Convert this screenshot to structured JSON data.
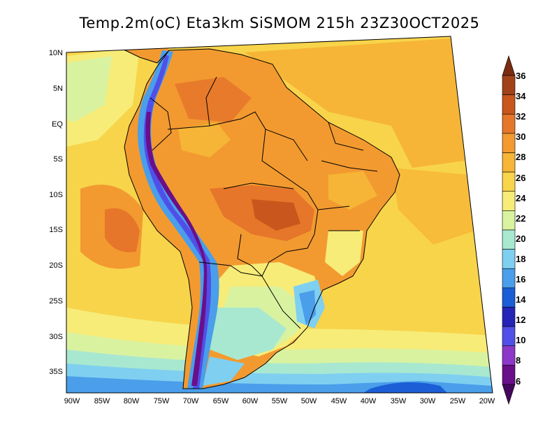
{
  "title": "Temp.2m(oC) Eta3km SiSMOM 215h 23Z30OCT2025",
  "lat_labels": [
    "10N",
    "5N",
    "EQ",
    "5S",
    "10S",
    "15S",
    "20S",
    "25S",
    "30S",
    "35S"
  ],
  "lon_labels": [
    "90W",
    "85W",
    "80W",
    "75W",
    "70W",
    "65W",
    "60W",
    "55W",
    "50W",
    "45W",
    "40W",
    "35W",
    "30W",
    "25W",
    "20W"
  ],
  "colorbar": {
    "labels": [
      "36",
      "34",
      "32",
      "30",
      "28",
      "26",
      "24",
      "22",
      "20",
      "18",
      "16",
      "14",
      "12",
      "10",
      "8",
      "6"
    ],
    "colors": [
      "#7a2c10",
      "#a1421a",
      "#c9561c",
      "#e6762a",
      "#f29a30",
      "#f6b536",
      "#f8d44a",
      "#f7ec78",
      "#d9f2a0",
      "#a8e8d0",
      "#7fcff0",
      "#4a9eea",
      "#1b5ed6",
      "#2424b8",
      "#5050e8",
      "#8c38c8",
      "#6a0f8a",
      "#45085e"
    ]
  }
}
